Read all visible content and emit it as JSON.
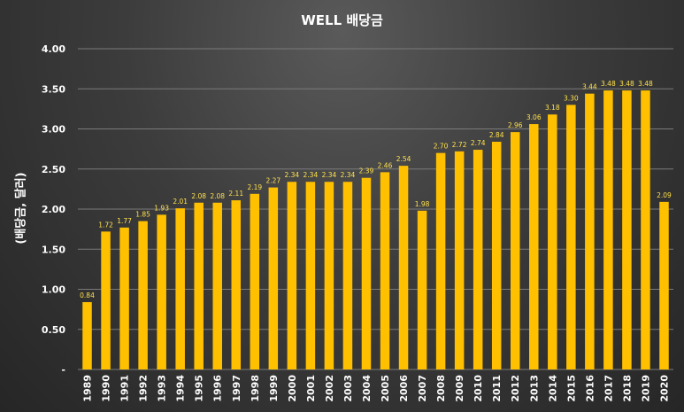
{
  "chart_data": {
    "type": "bar",
    "title": "WELL 배당금",
    "ylabel": "(배당금, 달러)",
    "xlabel": "",
    "ylim": [
      0,
      4
    ],
    "yticks": [
      "-",
      "0.50",
      "1.00",
      "1.50",
      "2.00",
      "2.50",
      "3.00",
      "3.50",
      "4.00"
    ],
    "grid": true,
    "bar_color": "#FFC000",
    "label_color": "#FFE14D",
    "categories": [
      "1989",
      "1990",
      "1991",
      "1992",
      "1993",
      "1994",
      "1995",
      "1996",
      "1997",
      "1998",
      "1999",
      "2000",
      "2001",
      "2002",
      "2003",
      "2004",
      "2005",
      "2006",
      "2007",
      "2008",
      "2009",
      "2010",
      "2011",
      "2012",
      "2013",
      "2014",
      "2015",
      "2016",
      "2017",
      "2018",
      "2019",
      "2020"
    ],
    "values": [
      0.84,
      1.72,
      1.77,
      1.85,
      1.93,
      2.01,
      2.08,
      2.08,
      2.11,
      2.19,
      2.27,
      2.34,
      2.34,
      2.34,
      2.34,
      2.39,
      2.46,
      2.54,
      1.98,
      2.7,
      2.72,
      2.74,
      2.84,
      2.96,
      3.06,
      3.18,
      3.3,
      3.44,
      3.48,
      3.48,
      3.48,
      2.09
    ]
  }
}
